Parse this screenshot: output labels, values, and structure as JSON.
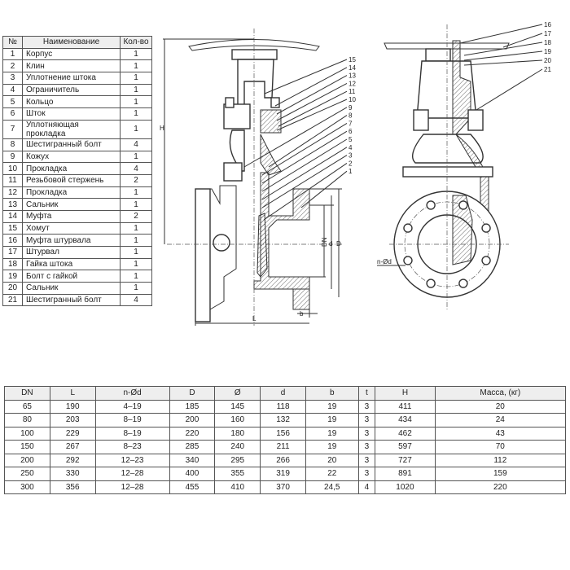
{
  "parts_table": {
    "headers": [
      "№",
      "Наименование",
      "Кол-во"
    ],
    "rows": [
      [
        "1",
        "Корпус",
        "1"
      ],
      [
        "2",
        "Клин",
        "1"
      ],
      [
        "3",
        "Уплотнение штока",
        "1"
      ],
      [
        "4",
        "Ограничитель",
        "1"
      ],
      [
        "5",
        "Кольцо",
        "1"
      ],
      [
        "6",
        "Шток",
        "1"
      ],
      [
        "7",
        "Уплотняющая прокладка",
        "1"
      ],
      [
        "8",
        "Шестигранный болт",
        "4"
      ],
      [
        "9",
        "Кожух",
        "1"
      ],
      [
        "10",
        "Прокладка",
        "4"
      ],
      [
        "11",
        "Резьбовой стержень",
        "2"
      ],
      [
        "12",
        "Прокладка",
        "1"
      ],
      [
        "13",
        "Сальник",
        "1"
      ],
      [
        "14",
        "Муфта",
        "2"
      ],
      [
        "15",
        "Хомут",
        "1"
      ],
      [
        "16",
        "Муфта штурвала",
        "1"
      ],
      [
        "17",
        "Штурвал",
        "1"
      ],
      [
        "18",
        "Гайка штока",
        "1"
      ],
      [
        "19",
        "Болт с гайкой",
        "1"
      ],
      [
        "20",
        "Сальник",
        "1"
      ],
      [
        "21",
        "Шестигранный болт",
        "4"
      ]
    ]
  },
  "dimensions_table": {
    "headers": [
      "DN",
      "L",
      "n-Ød",
      "D",
      "Ø",
      "d",
      "b",
      "t",
      "H",
      "Масса, (кг)"
    ],
    "rows": [
      [
        "65",
        "190",
        "4–19",
        "185",
        "145",
        "118",
        "19",
        "3",
        "411",
        "20"
      ],
      [
        "80",
        "203",
        "8–19",
        "200",
        "160",
        "132",
        "19",
        "3",
        "434",
        "24"
      ],
      [
        "100",
        "229",
        "8–19",
        "220",
        "180",
        "156",
        "19",
        "3",
        "462",
        "43"
      ],
      [
        "150",
        "267",
        "8–23",
        "285",
        "240",
        "211",
        "19",
        "3",
        "597",
        "70"
      ],
      [
        "200",
        "292",
        "12–23",
        "340",
        "295",
        "266",
        "20",
        "3",
        "727",
        "112"
      ],
      [
        "250",
        "330",
        "12–28",
        "400",
        "355",
        "319",
        "22",
        "3",
        "891",
        "159"
      ],
      [
        "300",
        "356",
        "12–28",
        "455",
        "410",
        "370",
        "24,5",
        "4",
        "1020",
        "220"
      ]
    ]
  },
  "drawing": {
    "front_callouts": [
      "15",
      "14",
      "13",
      "12",
      "11",
      "10",
      "9",
      "8",
      "7",
      "6",
      "5",
      "4",
      "3",
      "2",
      "1"
    ],
    "side_callouts": [
      "16",
      "17",
      "18",
      "19",
      "20",
      "21"
    ],
    "dim_labels": {
      "H": "H",
      "L": "L",
      "DN": "DN",
      "d": "d",
      "D": "D",
      "b": "b",
      "nd": "n-Ød"
    }
  }
}
